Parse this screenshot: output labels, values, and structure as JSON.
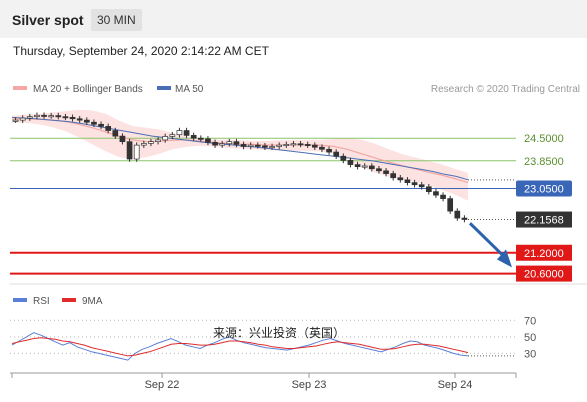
{
  "header": {
    "title": "Silver spot",
    "timeframe": "30 MIN",
    "datetime": "Thursday, September 24, 2020 2:14:22 AM CET"
  },
  "legend": {
    "bollinger_label": "MA 20 + Bollinger Bands",
    "ma50_label": "MA 50",
    "rsi_label": "RSI",
    "rsi_ma_label": "9MA"
  },
  "credit": "Research © 2020 Trading Central",
  "watermark": "来源：兴业投资（英国）",
  "colors": {
    "resistance_green": "#8cc46a",
    "pivot_blue": "#3a66b8",
    "support_red": "#e01818",
    "ma50": "#4a6eb5",
    "ma20_band": "#f4a7a4",
    "candle": "#333333",
    "arrow": "#2d63ac",
    "rsi": "#5b7fd6",
    "rsi_ma": "#e02b2b"
  },
  "chart_data": [
    {
      "type": "line",
      "description_series": "candlestick price",
      "x_labels": [
        "Sep 22",
        "Sep 23",
        "Sep 24"
      ],
      "ylim": [
        20.3,
        25.6
      ],
      "levels": [
        {
          "value": 24.5,
          "label": "24.5000",
          "kind": "resistance"
        },
        {
          "value": 23.85,
          "label": "23.8500",
          "kind": "resistance"
        },
        {
          "value": 23.05,
          "label": "23.0500",
          "kind": "pivot"
        },
        {
          "value": 22.1568,
          "label": "22.1568",
          "kind": "last"
        },
        {
          "value": 21.2,
          "label": "21.2000",
          "kind": "support"
        },
        {
          "value": 20.6,
          "label": "20.6000",
          "kind": "support"
        }
      ],
      "price": [
        25.02,
        25.08,
        25.12,
        25.16,
        25.14,
        25.15,
        25.12,
        25.1,
        25.06,
        25.02,
        24.96,
        24.9,
        24.84,
        24.72,
        24.56,
        24.4,
        23.9,
        24.3,
        24.35,
        24.4,
        24.45,
        24.55,
        24.6,
        24.72,
        24.58,
        24.5,
        24.48,
        24.38,
        24.3,
        24.34,
        24.4,
        24.32,
        24.26,
        24.3,
        24.28,
        24.24,
        24.26,
        24.3,
        24.32,
        24.34,
        24.32,
        24.3,
        24.24,
        24.18,
        24.1,
        23.98,
        23.86,
        23.74,
        23.68,
        23.7,
        23.62,
        23.56,
        23.48,
        23.36,
        23.3,
        23.22,
        23.16,
        23.1,
        22.96,
        22.86,
        22.76,
        22.4,
        22.2,
        22.1568
      ],
      "ma50": [
        25.1,
        25.08,
        25.06,
        25.03,
        25.0,
        24.97,
        24.92,
        24.86,
        24.8,
        24.74,
        24.68,
        24.62,
        24.56,
        24.52,
        24.48,
        24.44,
        24.4,
        24.36,
        24.33,
        24.3,
        24.27,
        24.24,
        24.2,
        24.16,
        24.12,
        24.08,
        24.04,
        24.0,
        23.96,
        23.92,
        23.88,
        23.84,
        23.78,
        23.72,
        23.66,
        23.6,
        23.54,
        23.46,
        23.4,
        23.3
      ],
      "ma20": [
        25.05,
        25.06,
        25.05,
        25.02,
        24.98,
        24.9,
        24.8,
        24.68,
        24.55,
        24.45,
        24.4,
        24.42,
        24.44,
        24.45,
        24.42,
        24.38,
        24.35,
        24.33,
        24.32,
        24.3,
        24.3,
        24.31,
        24.31,
        24.3,
        24.26,
        24.18,
        24.06,
        23.94,
        23.82,
        23.72,
        23.62,
        23.52,
        23.44,
        23.34,
        23.22
      ],
      "bollinger_upper": [
        25.15,
        25.18,
        25.2,
        25.24,
        25.28,
        25.32,
        25.3,
        25.2,
        25.0,
        24.85,
        24.8,
        24.75,
        24.65,
        24.55,
        24.5,
        24.47,
        24.46,
        24.44,
        24.42,
        24.42,
        24.44,
        24.45,
        24.45,
        24.45,
        24.48,
        24.5,
        24.46,
        24.35,
        24.2,
        24.05,
        23.95,
        23.85,
        23.75,
        23.62,
        23.5
      ],
      "bollinger_lower": [
        24.95,
        24.94,
        24.9,
        24.82,
        24.7,
        24.52,
        24.32,
        24.12,
        23.95,
        23.9,
        23.95,
        24.05,
        24.18,
        24.25,
        24.28,
        24.26,
        24.22,
        24.2,
        24.18,
        24.16,
        24.14,
        24.14,
        24.14,
        24.12,
        24.06,
        23.9,
        23.68,
        23.52,
        23.4,
        23.32,
        23.24,
        23.14,
        23.02,
        22.88,
        22.7
      ]
    },
    {
      "type": "line",
      "description_series": "RSI panel",
      "x_labels": [
        "Sep 22",
        "Sep 23",
        "Sep 24"
      ],
      "ylim": [
        10,
        80
      ],
      "yticks": [
        30,
        50,
        70
      ],
      "rsi": [
        40,
        45,
        50,
        55,
        52,
        48,
        44,
        40,
        43,
        38,
        35,
        32,
        30,
        28,
        26,
        24,
        22,
        30,
        35,
        38,
        42,
        45,
        48,
        44,
        40,
        38,
        36,
        40,
        43,
        47,
        50,
        46,
        43,
        41,
        39,
        37,
        36,
        35,
        34,
        36,
        38,
        40,
        43,
        46,
        48,
        45,
        42,
        40,
        38,
        36,
        34,
        32,
        35,
        38,
        42,
        45,
        44,
        40,
        38,
        36,
        33,
        30,
        28,
        27
      ],
      "rsi_ma": [
        42,
        44,
        46,
        48,
        49,
        48,
        47,
        45,
        44,
        42,
        40,
        37,
        35,
        33,
        31,
        29,
        27,
        28,
        30,
        32,
        35,
        38,
        41,
        42,
        42,
        41,
        40,
        40,
        41,
        43,
        45,
        45,
        44,
        43,
        41,
        40,
        38,
        37,
        36,
        36,
        37,
        38,
        39,
        41,
        43,
        44,
        43,
        42,
        41,
        39,
        37,
        35,
        35,
        36,
        38,
        40,
        41,
        41,
        40,
        39,
        37,
        35,
        33,
        31
      ]
    }
  ]
}
